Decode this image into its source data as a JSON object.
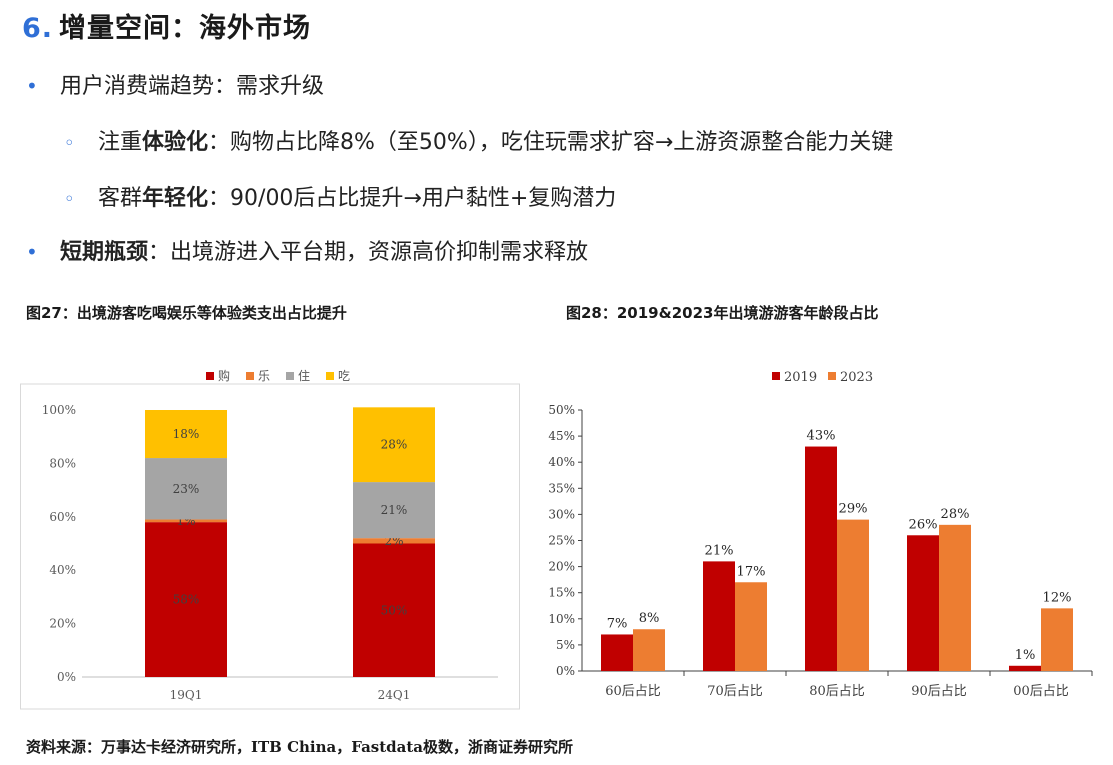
{
  "header": {
    "number": "6.",
    "title": "增量空间：海外市场"
  },
  "bullets": {
    "b1": {
      "text": "用户消费端趋势：需求升级"
    },
    "b2": {
      "pre": "注重",
      "bold": "体验化",
      "post": "：购物占比降8%（至50%），吃住玩需求扩容→上游资源整合能力关键"
    },
    "b3": {
      "pre": "客群",
      "bold": "年轻化",
      "post": "：90/00后占比提升→用户黏性+复购潜力"
    },
    "b4": {
      "bold": "短期瓶颈",
      "post": "：出境游进入平台期，资源高价抑制需求释放"
    }
  },
  "figures": {
    "fig27_title": "图27：出境游客吃喝娱乐等体验类支出占比提升",
    "fig28_title": "图28：2019&2023年出境游游客年龄段占比"
  },
  "source": "资料来源：万事达卡经济研究所，ITB China，Fastdata极数，浙商证券研究所",
  "colors": {
    "accent": "#2f6fd6",
    "red": "#c00000",
    "orange": "#ed7d31",
    "gray": "#a5a5a5",
    "yellow": "#ffc000"
  },
  "chart_data": [
    {
      "type": "bar",
      "stacked": true,
      "categories": [
        "19Q1",
        "24Q1"
      ],
      "series": [
        {
          "name": "购",
          "values": [
            58,
            50
          ],
          "labels": [
            "58%",
            "50%"
          ],
          "color": "#c00000"
        },
        {
          "name": "乐",
          "values": [
            1,
            2
          ],
          "labels": [
            "1%",
            "2%"
          ],
          "color": "#ed7d31"
        },
        {
          "name": "住",
          "values": [
            23,
            21
          ],
          "labels": [
            "23%",
            "21%"
          ],
          "color": "#a5a5a5"
        },
        {
          "name": "吃",
          "values": [
            18,
            28
          ],
          "labels": [
            "18%",
            "28%"
          ],
          "color": "#ffc000"
        }
      ],
      "yticks": [
        "0%",
        "20%",
        "40%",
        "60%",
        "80%",
        "100%"
      ],
      "ylim": [
        0,
        100
      ],
      "legend": "top-center",
      "grid": false
    },
    {
      "type": "bar",
      "categories": [
        "60后占比",
        "70后占比",
        "80后占比",
        "90后占比",
        "00后占比"
      ],
      "series": [
        {
          "name": "2019",
          "values": [
            7,
            21,
            43,
            26,
            1
          ],
          "labels": [
            "7%",
            "21%",
            "43%",
            "26%",
            "1%"
          ],
          "color": "#c00000"
        },
        {
          "name": "2023",
          "values": [
            8,
            17,
            29,
            28,
            12
          ],
          "labels": [
            "8%",
            "17%",
            "29%",
            "28%",
            "12%"
          ],
          "color": "#ed7d31"
        }
      ],
      "yticks": [
        "0%",
        "5%",
        "10%",
        "15%",
        "20%",
        "25%",
        "30%",
        "35%",
        "40%",
        "45%",
        "50%"
      ],
      "ylim": [
        0,
        50
      ],
      "legend": "top-center",
      "grid": false
    }
  ]
}
